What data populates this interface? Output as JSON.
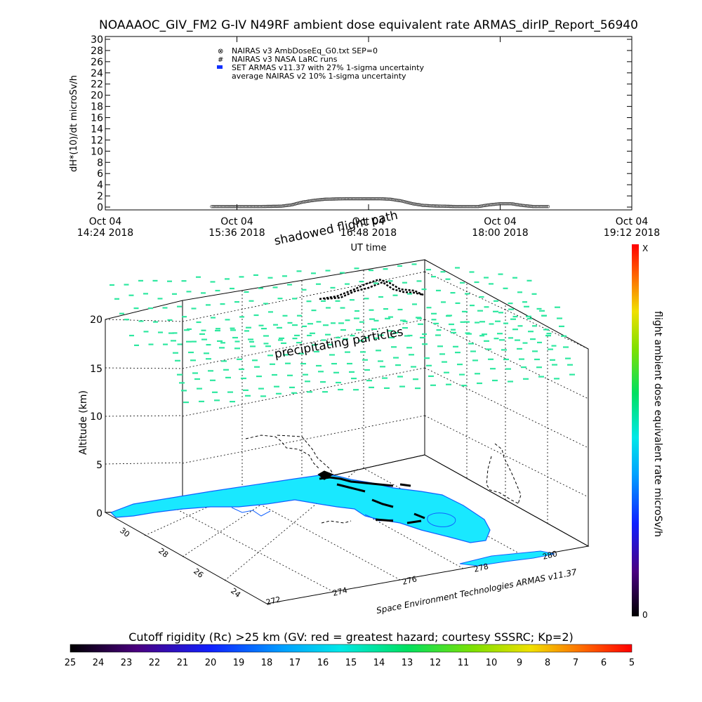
{
  "title": "NOAAAOC_GIV_FM2 G-IV   N49RF  ambient dose equivalent rate ARMAS_dirIP_Report_56940",
  "chart_data": [
    {
      "type": "scatter",
      "ylabel": "dH*(10)/dt microSv/h",
      "xlabel": "UT time",
      "ylim": [
        0,
        30
      ],
      "yticks": [
        "0",
        "2",
        "4",
        "6",
        "8",
        "10",
        "12",
        "14",
        "16",
        "18",
        "20",
        "22",
        "24",
        "26",
        "28",
        "30"
      ],
      "xticks": [
        {
          "l1": "Oct 04",
          "l2": "14:24 2018"
        },
        {
          "l1": "Oct 04",
          "l2": "15:36 2018"
        },
        {
          "l1": "Oct 04",
          "l2": "16:48 2018"
        },
        {
          "l1": "Oct 04",
          "l2": "18:00 2018"
        },
        {
          "l1": "Oct 04",
          "l2": "19:12 2018"
        }
      ],
      "xlim_hours": [
        14.4,
        19.2
      ],
      "legend": [
        {
          "symbol": "⊗",
          "label": "NAIRAS v3 AmbDoseEq_G0.txt SEP=0"
        },
        {
          "symbol": "#",
          "label": "NAIRAS v3 NASA LaRC runs"
        },
        {
          "symbol": "▬",
          "label": "SET ARMAS v11.37 with 27% 1-sigma uncertainty",
          "color": "#1030ff"
        },
        {
          "symbol": "",
          "label": "average NAIRAS v2 10% 1-sigma uncertainty"
        }
      ],
      "series": [
        {
          "name": "NAIRAS v3 AmbDoseEq_G0.txt SEP=0",
          "x": [
            15.37,
            15.6,
            15.8,
            16.0,
            16.1,
            16.2,
            16.3,
            16.4,
            16.5,
            16.6,
            16.7,
            16.8,
            16.9,
            17.0,
            17.1,
            17.2,
            17.3,
            17.4,
            17.6,
            17.8,
            17.9,
            18.0,
            18.1,
            18.2,
            18.3,
            18.45
          ],
          "y": [
            0.1,
            0.1,
            0.1,
            0.15,
            0.4,
            0.9,
            1.2,
            1.4,
            1.45,
            1.5,
            1.5,
            1.5,
            1.5,
            1.4,
            1.1,
            0.6,
            0.3,
            0.2,
            0.1,
            0.1,
            0.4,
            0.6,
            0.6,
            0.3,
            0.1,
            0.1
          ]
        }
      ]
    },
    {
      "type": "scatter",
      "subtype": "3d-flight-track",
      "zlabel": "Altitude (km)",
      "zticks": [
        "0",
        "5",
        "10",
        "15",
        "20"
      ],
      "lat_ticks": [
        "24",
        "26",
        "28",
        "30"
      ],
      "lon_ticks": [
        "272",
        "274",
        "276",
        "278",
        "280"
      ],
      "annotations": [
        "shadowed flight path",
        "precipitating particles"
      ],
      "credit": "Space Environment Technologies ARMAS v11.37"
    }
  ],
  "colorbar_right": {
    "label": "flight ambient dose equivalent rate microSv/h",
    "top": "X",
    "bottom": "0"
  },
  "colorbar_bottom": {
    "title": "Cutoff rigidity (Rc) >25 km (GV: red = greatest hazard; courtesy SSSRC; Kp=2)",
    "ticks": [
      "25",
      "24",
      "23",
      "22",
      "21",
      "20",
      "19",
      "18",
      "17",
      "16",
      "15",
      "14",
      "13",
      "12",
      "11",
      "10",
      "9",
      "8",
      "7",
      "6",
      "5"
    ]
  },
  "colors": {
    "points": "#2ee8a0",
    "land": "#19e8ff",
    "land_edge": "#1060ff",
    "track": "#000000"
  }
}
